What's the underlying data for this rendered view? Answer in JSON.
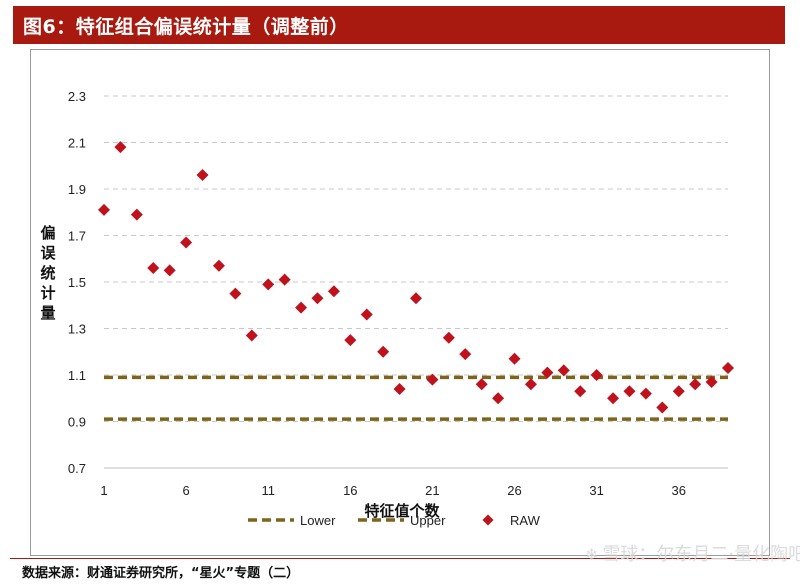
{
  "header": {
    "title": "图6：特征组合偏误统计量（调整前）"
  },
  "footer": {
    "source": "数据来源：财通证券研究所，“星火”专题（二）"
  },
  "watermark": {
    "text": "雪球：尔东月二·量化陶吧"
  },
  "colors": {
    "title_bar": "#a8190f",
    "bound_line": "#7d6418",
    "raw_marker": "#c0121c",
    "grid": "#c8c8c8"
  },
  "chart_data": {
    "type": "scatter",
    "xlabel": "特征值个数",
    "ylabel": "偏误统计量",
    "ylim": [
      0.7,
      2.3
    ],
    "yticks": [
      0.7,
      0.9,
      1.1,
      1.3,
      1.5,
      1.7,
      1.9,
      2.1,
      2.3
    ],
    "ytick_labels": [
      "0.7",
      "0.9",
      "1.1",
      "1.3",
      "1.5",
      "1.7",
      "1.9",
      "2.1",
      "2.3"
    ],
    "xticks": [
      1,
      6,
      11,
      16,
      21,
      26,
      31,
      36
    ],
    "xtick_labels": [
      "1",
      "6",
      "11",
      "16",
      "21",
      "26",
      "31",
      "36"
    ],
    "xlim": [
      1,
      39
    ],
    "grid": "horizontal dashed",
    "legend_position": "bottom",
    "series": [
      {
        "name": "Lower",
        "style": "dashed-line",
        "x": [
          1,
          39
        ],
        "y": [
          0.91,
          0.91
        ]
      },
      {
        "name": "Upper",
        "style": "dashed-line",
        "x": [
          1,
          39
        ],
        "y": [
          1.09,
          1.09
        ]
      },
      {
        "name": "RAW",
        "style": "diamond",
        "x": [
          1,
          2,
          3,
          4,
          5,
          6,
          7,
          8,
          9,
          10,
          11,
          12,
          13,
          14,
          15,
          16,
          17,
          18,
          19,
          20,
          21,
          22,
          23,
          24,
          25,
          26,
          27,
          28,
          29,
          30,
          31,
          32,
          33,
          34,
          35,
          36,
          37,
          38,
          39
        ],
        "y": [
          1.81,
          2.08,
          1.79,
          1.56,
          1.55,
          1.67,
          1.96,
          1.57,
          1.45,
          1.27,
          1.49,
          1.51,
          1.39,
          1.43,
          1.46,
          1.25,
          1.36,
          1.2,
          1.04,
          1.43,
          1.08,
          1.26,
          1.19,
          1.06,
          1.0,
          1.17,
          1.06,
          1.11,
          1.12,
          1.03,
          1.1,
          1.0,
          1.03,
          1.02,
          0.96,
          1.03,
          1.06,
          1.07,
          1.13
        ]
      }
    ]
  }
}
